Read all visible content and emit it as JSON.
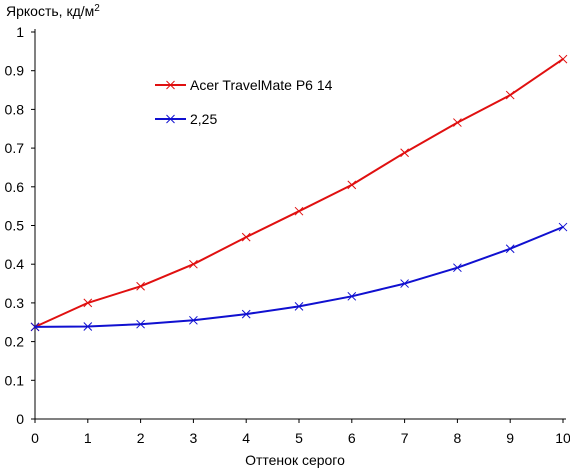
{
  "chart_data": {
    "type": "line",
    "ylabel": "Яркость, кд/м",
    "ylabel_superscript": "2",
    "xlabel": "Оттенок серого",
    "xlim": [
      0,
      10
    ],
    "ylim": [
      0,
      1
    ],
    "x_ticks": [
      "0",
      "1",
      "2",
      "3",
      "4",
      "5",
      "6",
      "7",
      "8",
      "9",
      "10"
    ],
    "y_ticks": [
      "0",
      "0.1",
      "0.2",
      "0.3",
      "0.4",
      "0.5",
      "0.6",
      "0.7",
      "0.8",
      "0.9",
      "1"
    ],
    "grid": false,
    "legend_position": "upper-left inside plot",
    "x": [
      0,
      1,
      2,
      3,
      4,
      5,
      6,
      7,
      8,
      9,
      10
    ],
    "series": [
      {
        "name": "Acer TravelMate P6 14",
        "color": "#e01010",
        "marker": "x",
        "values": [
          0.238,
          0.3,
          0.343,
          0.4,
          0.47,
          0.537,
          0.605,
          0.688,
          0.766,
          0.837,
          0.93
        ]
      },
      {
        "name": "2,25",
        "color": "#1010d0",
        "marker": "x",
        "values": [
          0.238,
          0.239,
          0.245,
          0.255,
          0.271,
          0.291,
          0.317,
          0.35,
          0.391,
          0.44,
          0.496
        ]
      }
    ]
  }
}
